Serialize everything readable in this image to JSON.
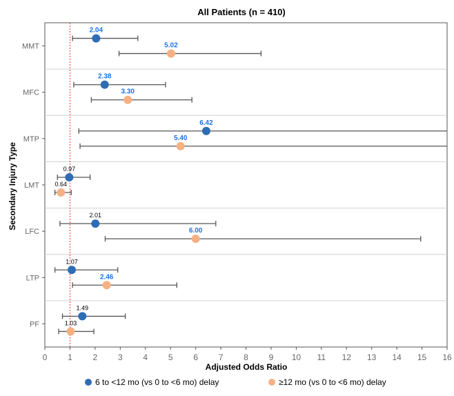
{
  "chart_data": {
    "type": "forest",
    "title": "All Patients (n = 410)",
    "xlabel": "Adjusted Odds Ratio",
    "ylabel": "Secondary Injury Type",
    "xlim": [
      0,
      16
    ],
    "xticks": [
      "0",
      "1",
      "2",
      "3",
      "4",
      "5",
      "6",
      "7",
      "8",
      "9",
      "10",
      "11",
      "12",
      "13",
      "14",
      "15",
      "16"
    ],
    "reference_line": 1,
    "categories": [
      "MMT",
      "MFC",
      "MTP",
      "LMT",
      "LFC",
      "LTP",
      "PF"
    ],
    "series": [
      {
        "name": "6 to <12 mo (vs 0 to <6 mo) delay",
        "color": "#2e6db4",
        "points": [
          {
            "category": "MMT",
            "or": 2.04,
            "lower": 1.1,
            "upper": 3.7,
            "label": "2.04",
            "significant": true
          },
          {
            "category": "MFC",
            "or": 2.38,
            "lower": 1.15,
            "upper": 4.8,
            "label": "2.38",
            "significant": true
          },
          {
            "category": "MTP",
            "or": 6.42,
            "lower": 1.35,
            "upper": 16,
            "label": "6.42",
            "significant": true
          },
          {
            "category": "LMT",
            "or": 0.97,
            "lower": 0.5,
            "upper": 1.8,
            "label": "0.97",
            "significant": false
          },
          {
            "category": "LFC",
            "or": 2.01,
            "lower": 0.6,
            "upper": 6.8,
            "label": "2.01",
            "significant": false
          },
          {
            "category": "LTP",
            "or": 1.07,
            "lower": 0.4,
            "upper": 2.9,
            "label": "1.07",
            "significant": false
          },
          {
            "category": "PF",
            "or": 1.49,
            "lower": 0.7,
            "upper": 3.2,
            "label": "1.49",
            "significant": false
          }
        ]
      },
      {
        "name": "≥12 mo (vs 0 to <6 mo) delay",
        "color": "#f5b183",
        "points": [
          {
            "category": "MMT",
            "or": 5.02,
            "lower": 2.95,
            "upper": 8.6,
            "label": "5.02",
            "significant": true
          },
          {
            "category": "MFC",
            "or": 3.3,
            "lower": 1.85,
            "upper": 5.85,
            "label": "3.30",
            "significant": true
          },
          {
            "category": "MTP",
            "or": 5.4,
            "lower": 1.4,
            "upper": 16,
            "label": "5.40",
            "significant": true
          },
          {
            "category": "LMT",
            "or": 0.64,
            "lower": 0.4,
            "upper": 1.05,
            "label": "0.64",
            "significant": false
          },
          {
            "category": "LFC",
            "or": 6.0,
            "lower": 2.4,
            "upper": 14.95,
            "label": "6.00",
            "significant": true
          },
          {
            "category": "LTP",
            "or": 2.46,
            "lower": 1.1,
            "upper": 5.25,
            "label": "2.46",
            "significant": true
          },
          {
            "category": "PF",
            "or": 1.03,
            "lower": 0.55,
            "upper": 1.95,
            "label": "1.03",
            "significant": false
          }
        ]
      }
    ],
    "legend_position": "bottom"
  }
}
